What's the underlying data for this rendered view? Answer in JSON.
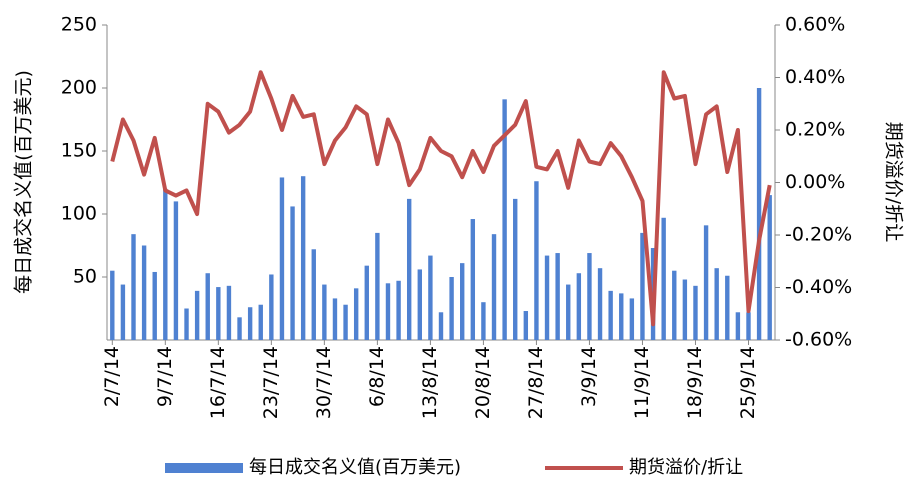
{
  "chart_data": {
    "type": "bar-line",
    "categories": [
      "2/7/14",
      null,
      null,
      null,
      null,
      "9/7/14",
      null,
      null,
      null,
      null,
      "16/7/14",
      null,
      null,
      null,
      null,
      "23/7/14",
      null,
      null,
      null,
      null,
      "30/7/14",
      null,
      null,
      null,
      null,
      "6/8/14",
      null,
      null,
      null,
      null,
      "13/8/14",
      null,
      null,
      null,
      null,
      "20/8/14",
      null,
      null,
      null,
      null,
      "27/8/14",
      null,
      null,
      null,
      null,
      "3/9/14",
      null,
      null,
      null,
      null,
      "11/9/14",
      null,
      null,
      null,
      null,
      "18/9/14",
      null,
      null,
      null,
      null,
      "25/9/14",
      null,
      null
    ],
    "series": [
      {
        "name": "每日成交名义值(百万美元)",
        "type": "bar",
        "color": "#4f81d1",
        "values": [
          55,
          44,
          84,
          75,
          54,
          120,
          110,
          25,
          39,
          53,
          42,
          43,
          18,
          26,
          28,
          52,
          129,
          106,
          130,
          72,
          44,
          33,
          28,
          41,
          59,
          85,
          45,
          47,
          112,
          56,
          67,
          22,
          50,
          61,
          96,
          30,
          84,
          191,
          112,
          23,
          126,
          67,
          69,
          44,
          53,
          69,
          57,
          39,
          37,
          33,
          85,
          73,
          97,
          55,
          48,
          43,
          91,
          57,
          51,
          22,
          22,
          200,
          115
        ]
      },
      {
        "name": "期货溢价/折让",
        "type": "line",
        "axis": "y2",
        "color": "#c0504d",
        "values": [
          0.08,
          0.24,
          0.16,
          0.03,
          0.17,
          -0.03,
          -0.05,
          -0.03,
          -0.12,
          0.3,
          0.27,
          0.19,
          0.22,
          0.27,
          0.42,
          0.32,
          0.2,
          0.33,
          0.25,
          0.26,
          0.07,
          0.16,
          0.21,
          0.29,
          0.26,
          0.07,
          0.24,
          0.15,
          -0.01,
          0.05,
          0.17,
          0.12,
          0.1,
          0.02,
          0.12,
          0.04,
          0.14,
          0.18,
          0.22,
          0.31,
          0.06,
          0.05,
          0.12,
          -0.02,
          0.16,
          0.08,
          0.07,
          0.15,
          0.1,
          0.02,
          -0.07,
          -0.54,
          0.42,
          0.32,
          0.33,
          0.07,
          0.26,
          0.29,
          0.04,
          0.2,
          -0.49,
          -0.22,
          -0.01
        ]
      }
    ],
    "y_label": "每日成交名义值(百万美元)",
    "y2_label": "期货溢价/折让",
    "ylim": [
      0,
      250
    ],
    "yticks": [
      50,
      100,
      150,
      200,
      250
    ],
    "y2lim": [
      -0.6,
      0.6
    ],
    "y2ticks": [
      {
        "value": -0.6,
        "label": "-0.60%"
      },
      {
        "value": -0.4,
        "label": "-0.40%"
      },
      {
        "value": -0.2,
        "label": "-0.20%"
      },
      {
        "value": 0,
        "label": "0.00%"
      },
      {
        "value": 0.2,
        "label": "0.20%"
      },
      {
        "value": 0.4,
        "label": "0.40%"
      },
      {
        "value": 0.6,
        "label": "0.60%"
      }
    ],
    "legend": "bottom"
  }
}
